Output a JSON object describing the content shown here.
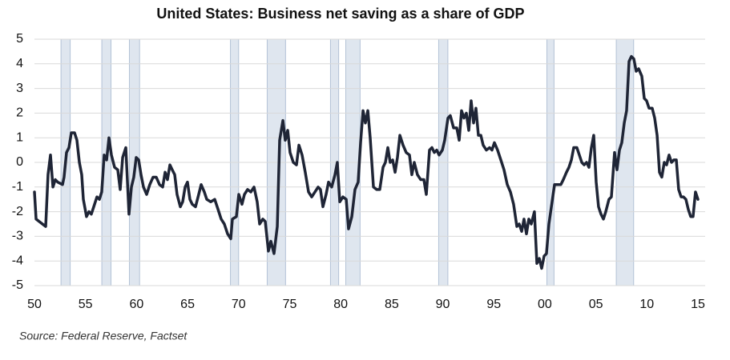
{
  "chart_data": {
    "type": "line",
    "title": "United States: Business net saving as a share of GDP",
    "source": "Source: Federal Reserve, Factset",
    "xlim": [
      1950,
      2015
    ],
    "xticks": [
      {
        "value": 1950,
        "label": "50"
      },
      {
        "value": 1955,
        "label": "55"
      },
      {
        "value": 1960,
        "label": "60"
      },
      {
        "value": 1965,
        "label": "65"
      },
      {
        "value": 1970,
        "label": "70"
      },
      {
        "value": 1975,
        "label": "75"
      },
      {
        "value": 1980,
        "label": "80"
      },
      {
        "value": 1985,
        "label": "85"
      },
      {
        "value": 1990,
        "label": "90"
      },
      {
        "value": 1995,
        "label": "95"
      },
      {
        "value": 2000,
        "label": "00"
      },
      {
        "value": 2005,
        "label": "05"
      },
      {
        "value": 2010,
        "label": "10"
      },
      {
        "value": 2015,
        "label": "15"
      }
    ],
    "ylim": [
      -5,
      5
    ],
    "yticks": [
      5,
      4,
      3,
      2,
      1,
      0,
      -1,
      -2,
      -3,
      -4,
      -5
    ],
    "grid": true,
    "recessions": [
      [
        1952.6,
        1953.5
      ],
      [
        1956.6,
        1957.5
      ],
      [
        1959.3,
        1960.3
      ],
      [
        1969.2,
        1970.0
      ],
      [
        1972.8,
        1974.6
      ],
      [
        1979.0,
        1979.8
      ],
      [
        1980.5,
        1981.9
      ],
      [
        1989.6,
        1990.5
      ],
      [
        2000.2,
        2000.9
      ],
      [
        2007.0,
        2008.7
      ]
    ],
    "x": [
      1950.0,
      1950.16,
      1951.1,
      1951.33,
      1951.57,
      1951.81,
      1952.04,
      1952.28,
      1952.75,
      1952.9,
      1953.14,
      1953.38,
      1953.61,
      1953.93,
      1954.16,
      1954.4,
      1954.63,
      1954.79,
      1955.1,
      1955.34,
      1955.57,
      1955.81,
      1956.12,
      1956.36,
      1956.59,
      1956.83,
      1957.07,
      1957.3,
      1957.54,
      1957.85,
      1958.16,
      1958.4,
      1958.64,
      1958.95,
      1959.26,
      1959.5,
      1959.73,
      1959.97,
      1960.21,
      1960.44,
      1960.68,
      1960.99,
      1961.3,
      1961.62,
      1961.93,
      1962.25,
      1962.56,
      1962.8,
      1963.03,
      1963.27,
      1963.5,
      1963.74,
      1963.97,
      1964.29,
      1964.52,
      1964.76,
      1964.99,
      1965.23,
      1965.46,
      1965.78,
      1966.09,
      1966.33,
      1966.64,
      1966.88,
      1967.27,
      1967.66,
      1967.98,
      1968.29,
      1968.6,
      1968.92,
      1969.23,
      1969.39,
      1969.78,
      1970.02,
      1970.33,
      1970.57,
      1970.88,
      1971.2,
      1971.51,
      1971.82,
      1972.06,
      1972.37,
      1972.61,
      1972.92,
      1973.16,
      1973.47,
      1973.79,
      1974.02,
      1974.34,
      1974.57,
      1974.81,
      1975.04,
      1975.36,
      1975.67,
      1975.91,
      1976.22,
      1976.53,
      1976.85,
      1977.16,
      1977.48,
      1977.79,
      1978.02,
      1978.26,
      1978.57,
      1978.81,
      1979.12,
      1979.44,
      1979.67,
      1979.91,
      1980.22,
      1980.54,
      1980.77,
      1981.09,
      1981.4,
      1981.71,
      1981.95,
      1982.19,
      1982.42,
      1982.66,
      1982.89,
      1983.21,
      1983.52,
      1983.83,
      1984.15,
      1984.38,
      1984.62,
      1984.85,
      1985.09,
      1985.33,
      1985.56,
      1985.8,
      1986.11,
      1986.42,
      1986.74,
      1986.97,
      1987.21,
      1987.52,
      1987.84,
      1988.15,
      1988.39,
      1988.7,
      1988.94,
      1989.17,
      1989.41,
      1989.64,
      1989.96,
      1990.19,
      1990.51,
      1990.74,
      1991.06,
      1991.37,
      1991.61,
      1991.84,
      1992.08,
      1992.31,
      1992.55,
      1992.78,
      1993.02,
      1993.25,
      1993.49,
      1993.73,
      1993.96,
      1994.27,
      1994.59,
      1994.82,
      1995.06,
      1995.37,
      1995.69,
      1996.0,
      1996.32,
      1996.63,
      1996.94,
      1997.26,
      1997.49,
      1997.73,
      1997.96,
      1998.2,
      1998.43,
      1998.67,
      1998.98,
      1999.22,
      1999.46,
      1999.69,
      1999.93,
      2000.16,
      2000.4,
      2000.71,
      2000.95,
      2001.26,
      2001.57,
      2001.81,
      2002.12,
      2002.36,
      2002.6,
      2002.83,
      2003.14,
      2003.38,
      2003.62,
      2003.85,
      2004.09,
      2004.32,
      2004.56,
      2004.79,
      2005.03,
      2005.26,
      2005.5,
      2005.74,
      2005.97,
      2006.28,
      2006.52,
      2006.83,
      2007.07,
      2007.31,
      2007.54,
      2007.78,
      2008.01,
      2008.25,
      2008.48,
      2008.72,
      2008.95,
      2009.19,
      2009.5,
      2009.74,
      2009.97,
      2010.21,
      2010.52,
      2010.76,
      2011.0,
      2011.23,
      2011.46,
      2011.7,
      2011.93,
      2012.17,
      2012.41,
      2012.64,
      2012.88,
      2013.11,
      2013.35,
      2013.58,
      2013.82,
      2014.05,
      2014.29,
      2014.52,
      2014.76,
      2015.0
    ],
    "series": [
      {
        "name": "Business net saving",
        "color": "#1f2536",
        "values": [
          -1.2,
          -2.3,
          -2.6,
          -0.5,
          0.3,
          -1.0,
          -0.7,
          -0.8,
          -0.9,
          -0.6,
          0.4,
          0.6,
          1.2,
          1.2,
          0.9,
          0,
          -0.5,
          -1.5,
          -2.2,
          -2.0,
          -2.1,
          -1.8,
          -1.4,
          -1.5,
          -1.2,
          0.3,
          0.1,
          1.0,
          0.3,
          -0.2,
          -0.3,
          -1.1,
          0.2,
          0.6,
          -2.1,
          -1.0,
          -0.6,
          0.2,
          0.1,
          -0.5,
          -1.0,
          -1.3,
          -0.9,
          -0.6,
          -0.6,
          -0.9,
          -1.0,
          -0.4,
          -0.7,
          -0.1,
          -0.3,
          -0.5,
          -1.3,
          -1.8,
          -1.6,
          -1.0,
          -0.8,
          -1.5,
          -1.7,
          -1.8,
          -1.3,
          -0.9,
          -1.2,
          -1.5,
          -1.6,
          -1.5,
          -1.9,
          -2.3,
          -2.5,
          -2.9,
          -3.1,
          -2.3,
          -2.2,
          -1.3,
          -1.7,
          -1.3,
          -1.1,
          -1.2,
          -1.0,
          -1.6,
          -2.5,
          -2.3,
          -2.4,
          -3.6,
          -3.2,
          -3.7,
          -2.6,
          0.9,
          1.7,
          0.9,
          1.3,
          0.4,
          0,
          -0.1,
          0.7,
          0.3,
          -0.4,
          -1.2,
          -1.4,
          -1.2,
          -1.0,
          -1.1,
          -1.8,
          -1.3,
          -0.8,
          -1.0,
          -0.5,
          0,
          -1.6,
          -1.4,
          -1.5,
          -2.7,
          -2.2,
          -1.1,
          -0.8,
          0.8,
          2.1,
          1.6,
          2.1,
          1.0,
          -1.0,
          -1.1,
          -1.1,
          -0.2,
          0,
          0.6,
          0,
          0.1,
          -0.4,
          0.2,
          1.1,
          0.7,
          0.4,
          0.3,
          -0.5,
          0,
          -0.5,
          -0.7,
          -0.7,
          -1.3,
          0.5,
          0.6,
          0.4,
          0.5,
          0.3,
          0.5,
          0.9,
          1.8,
          1.9,
          1.4,
          1.4,
          0.9,
          2.1,
          1.8,
          2.0,
          1.3,
          2.5,
          1.6,
          2.2,
          1.1,
          1.1,
          0.7,
          0.5,
          0.6,
          0.5,
          0.8,
          0.5,
          0.1,
          -0.3,
          -0.9,
          -1.2,
          -1.7,
          -2.6,
          -2.5,
          -2.8,
          -2.3,
          -2.9,
          -2.3,
          -2.5,
          -2.0,
          -4.1,
          -3.9,
          -4.3,
          -3.8,
          -3.7,
          -2.5,
          -1.6,
          -0.9,
          -0.9,
          -0.9,
          -0.7,
          -0.4,
          -0.2,
          0.1,
          0.6,
          0.6,
          0.3,
          0,
          -0.1,
          0,
          -0.2,
          0.6,
          1.1,
          -0.8,
          -1.8,
          -2.1,
          -2.3,
          -2.0,
          -1.5,
          -1.4,
          0.4,
          -0.3,
          0.5,
          0.8,
          1.6,
          2.1,
          4.1,
          4.3,
          4.2,
          3.7,
          3.8,
          3.5,
          2.6,
          2.5,
          2.2,
          2.2,
          1.8,
          1.1,
          -0.4,
          -0.6,
          0,
          -0.1,
          0.3,
          0,
          0.1,
          0.1,
          -1.1,
          -1.4,
          -1.4,
          -1.5,
          -1.9,
          -2.2,
          -2.2,
          -1.2,
          -1.5
        ]
      }
    ]
  }
}
